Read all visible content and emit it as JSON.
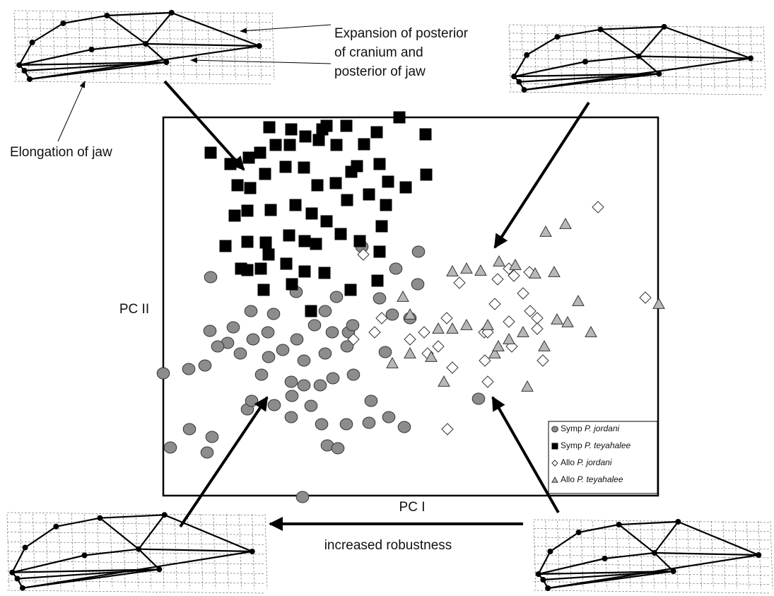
{
  "chart_data": {
    "type": "scatter",
    "xlabel": "PC I",
    "ylabel": "PC II",
    "xlim": [
      0,
      700
    ],
    "ylim": [
      0,
      535
    ],
    "legend": "lower right",
    "annotations": [
      "Expansion of posterior",
      "of cranium and",
      "posterior of jaw",
      "Elongation of jaw",
      "increased robustness"
    ],
    "series": [
      {
        "name": "Symp P. jordani",
        "color": "#8c8c8c",
        "marker": "circle",
        "x": [
          67,
          0,
          36,
          59,
          66,
          10,
          37,
          62,
          69,
          119,
          157,
          125,
          181,
          199,
          222,
          240,
          269,
          294,
          319,
          341,
          291,
          259,
          232,
          247,
          197,
          181,
          209,
          214,
          239,
          262,
          229,
          245,
          281,
          361,
          360,
          329,
          324,
          349,
          314,
          306,
          188,
          156,
          124,
          99,
          91,
          127,
          148,
          169,
          199,
          229,
          268,
          260,
          224,
          182,
          139,
          109,
          149,
          189,
          446,
          77
        ],
        "y": [
          309,
          173,
          179,
          184,
          233,
          68,
          94,
          61,
          83,
          122,
          128,
          134,
          161,
          156,
          156,
          166,
          171,
          134,
          111,
          97,
          103,
          101,
          71,
          67,
          -2,
          111,
          127,
          241,
          231,
          231,
          261,
          281,
          352,
          345,
          299,
          321,
          256,
          251,
          203,
          279,
          288,
          257,
          261,
          238,
          216,
          221,
          231,
          206,
          191,
          201,
          241,
          211,
          101,
          141,
          171,
          201,
          196,
          221,
          137,
          211
        ]
      },
      {
        "name": "Symp P. teyahalee",
        "color": "#000000",
        "marker": "square",
        "x": [
          150,
          181,
          225,
          231,
          259,
          334,
          302,
          67,
          95,
          121,
          137,
          159,
          179,
          201,
          220,
          245,
          284,
          371,
          372,
          318,
          306,
          266,
          244,
          218,
          199,
          173,
          144,
          123,
          105,
          88,
          110,
          138,
          174,
          200,
          228,
          265,
          303,
          306,
          278,
          251,
          216,
          200,
          178,
          145,
          119,
          101,
          119,
          152,
          187,
          210,
          231,
          260,
          291,
          315,
          343,
          274,
          309,
          209,
          182,
          142,
          119,
          149
        ],
        "y": [
          521,
          518,
          518,
          523,
          523,
          535,
          514,
          485,
          469,
          478,
          485,
          496,
          496,
          508,
          503,
          496,
          497,
          511,
          454,
          444,
          469,
          458,
          442,
          439,
          464,
          465,
          455,
          435,
          439,
          353,
          321,
          321,
          328,
          317,
          315,
          291,
          304,
          345,
          360,
          370,
          356,
          360,
          368,
          358,
          359,
          396,
          403,
          404,
          411,
          399,
          388,
          418,
          426,
          411,
          436,
          466,
          381,
          261,
          299,
          291,
          319,
          341
        ]
      },
      {
        "name": "Allo P. jordani",
        "color": "#ffffff",
        "marker": "diamond",
        "x": [
          283,
          615,
          682,
          454,
          473,
          489,
          496,
          518,
          509,
          519,
          529,
          469,
          459,
          455,
          459,
          537,
          493,
          419,
          401,
          389,
          369,
          349,
          309,
          299,
          269,
          402,
          374,
          409,
          529,
          489
        ],
        "y": [
          341,
          408,
          280,
          231,
          306,
          321,
          311,
          316,
          286,
          261,
          251,
          271,
          231,
          191,
          161,
          191,
          211,
          301,
          251,
          211,
          231,
          221,
          251,
          231,
          221,
          94,
          201,
          181,
          236,
          246
        ]
      },
      {
        "name": "Allo P. teyahalee",
        "color": "#b8b8b8",
        "marker": "triangle",
        "x": [
          541,
          569,
          449,
          409,
          429,
          475,
          498,
          526,
          553,
          557,
          587,
          572,
          605,
          701,
          515,
          397,
          339,
          349,
          324,
          379,
          409,
          429,
          459,
          469,
          489,
          509,
          539,
          389,
          349,
          474
        ],
        "y": [
          373,
          384,
          318,
          317,
          321,
          331,
          326,
          314,
          316,
          249,
          275,
          245,
          231,
          271,
          154,
          161,
          281,
          256,
          187,
          196,
          236,
          241,
          241,
          201,
          221,
          231,
          211,
          236,
          201,
          211
        ]
      }
    ]
  }
}
